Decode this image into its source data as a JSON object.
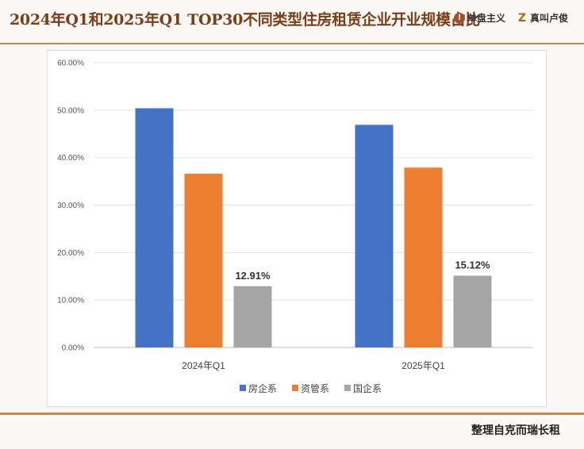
{
  "header": {
    "title": "2024年Q1和2025年Q1 TOP30不同类型住房租赁企业开业规模占比",
    "logo1": "单盘主义",
    "logo2": "真叫卢俊"
  },
  "footer": {
    "text": "整理自克而瑞长租"
  },
  "colors": {
    "title": "#7a3d18",
    "rule": "#c98a4b"
  },
  "chart_data": {
    "type": "bar",
    "categories": [
      "2024年Q1",
      "2025年Q1"
    ],
    "series": [
      {
        "name": "房企系",
        "color": "#4472c4",
        "values": [
          50.4,
          46.9
        ]
      },
      {
        "name": "资管系",
        "color": "#ed7d31",
        "values": [
          36.6,
          37.9
        ]
      },
      {
        "name": "国企系",
        "color": "#a5a5a5",
        "values": [
          12.91,
          15.12
        ]
      }
    ],
    "data_labels": [
      {
        "series": 2,
        "index": 0,
        "text": "12.91%"
      },
      {
        "series": 2,
        "index": 1,
        "text": "15.12%"
      }
    ],
    "ylim": [
      0,
      60
    ],
    "yticks": [
      "0.00%",
      "10.00%",
      "20.00%",
      "30.00%",
      "40.00%",
      "50.00%",
      "60.00%"
    ],
    "grid": true,
    "legend_position": "bottom"
  }
}
